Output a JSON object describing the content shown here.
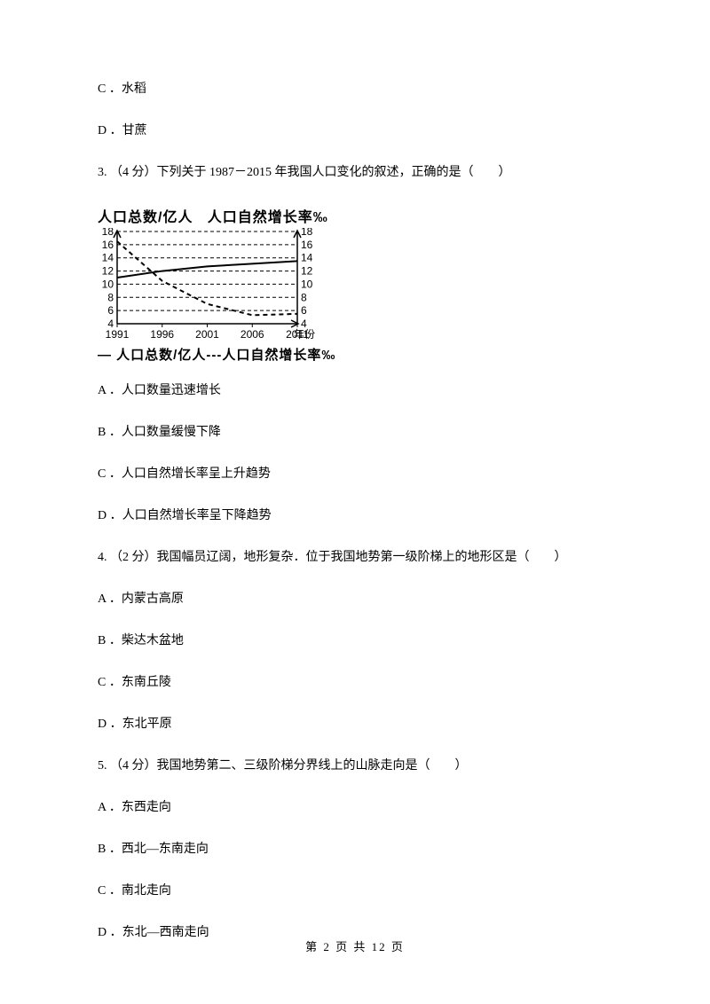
{
  "q2": {
    "optC": "C ．水稻",
    "optD": "D ．甘蔗"
  },
  "q3": {
    "stem": "3.   （4 分）下列关于 1987－2015 年我国人口变化的叙述，正确的是（　　）",
    "chart": {
      "type": "dual-axis-line",
      "title_left": "人口总数/亿人",
      "title_right": "人口自然增长率‰",
      "legend_text": "— 人口总数/亿人---人口自然增长率‰",
      "y_ticks": [
        4,
        6,
        8,
        10,
        12,
        14,
        16,
        18
      ],
      "x_ticks": [
        "1991",
        "1996",
        "2001",
        "2006",
        "2011"
      ],
      "x_axis_label": "年份",
      "series": {
        "population_total": {
          "style": "solid",
          "stroke": "#000000",
          "stroke_width": 2,
          "values": [
            11,
            12,
            12.7,
            13.1,
            13.5
          ]
        },
        "growth_rate": {
          "style": "dashed",
          "stroke": "#000000",
          "stroke_width": 2,
          "values": [
            16.5,
            10.5,
            7.0,
            5.3,
            5.5
          ]
        }
      },
      "grid_color": "#000000",
      "background_color": "#ffffff",
      "tick_font_size": 12
    },
    "optA": "A ．人口数量迅速增长",
    "optB": "B ．人口数量缓慢下降",
    "optC": "C ．人口自然增长率呈上升趋势",
    "optD": "D ．人口自然增长率呈下降趋势"
  },
  "q4": {
    "stem": "4.   （2 分）我国幅员辽阔，地形复杂．位于我国地势第一级阶梯上的地形区是（　　）",
    "optA": "A ．内蒙古高原",
    "optB": "B ．柴达木盆地",
    "optC": "C ．东南丘陵",
    "optD": "D ．东北平原"
  },
  "q5": {
    "stem": "5.   （4 分）我国地势第二、三级阶梯分界线上的山脉走向是（　　）",
    "optA": "A ．东西走向",
    "optB": "B ．西北—东南走向",
    "optC": "C ．南北走向",
    "optD": "D ．东北—西南走向"
  },
  "footer": "第 2 页 共 12 页"
}
